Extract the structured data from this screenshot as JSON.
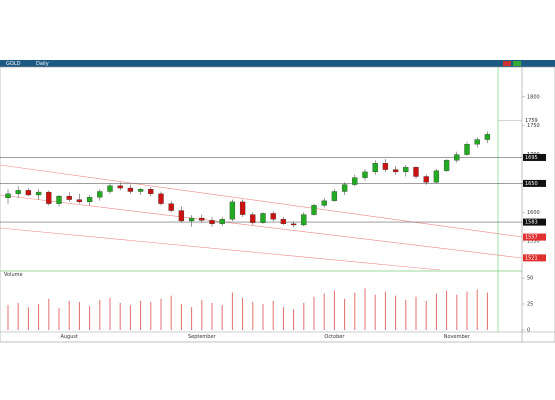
{
  "header": {
    "symbol": "GOLD",
    "timeframe": "Daily"
  },
  "chart_data": {
    "type": "candlestick",
    "categories": [
      null,
      null,
      null,
      null,
      null,
      null,
      "August",
      null,
      null,
      null,
      null,
      null,
      null,
      null,
      null,
      null,
      null,
      null,
      null,
      "September",
      null,
      null,
      null,
      null,
      null,
      null,
      null,
      null,
      null,
      null,
      null,
      null,
      "October",
      null,
      null,
      null,
      null,
      null,
      null,
      null,
      null,
      null,
      null,
      null,
      "November",
      null,
      null,
      null
    ],
    "open": [
      1625,
      1632,
      1638,
      1630,
      1635,
      1615,
      1628,
      1622,
      1618,
      1626,
      1636,
      1646,
      1642,
      1636,
      1640,
      1632,
      1615,
      1603,
      1585,
      1590,
      1586,
      1580,
      1588,
      1618,
      1596,
      1582,
      1598,
      1588,
      1580,
      1578,
      1596,
      1612,
      1620,
      1636,
      1648,
      1660,
      1670,
      1685,
      1674,
      1670,
      1678,
      1662,
      1652,
      1672,
      1690,
      1700,
      1718,
      1726
    ],
    "high": [
      1640,
      1645,
      1642,
      1640,
      1638,
      1630,
      1635,
      1632,
      1630,
      1640,
      1650,
      1652,
      1648,
      1642,
      1644,
      1636,
      1620,
      1610,
      1595,
      1596,
      1592,
      1592,
      1622,
      1622,
      1600,
      1600,
      1602,
      1592,
      1584,
      1600,
      1615,
      1625,
      1640,
      1652,
      1665,
      1675,
      1690,
      1692,
      1680,
      1682,
      1680,
      1666,
      1675,
      1692,
      1705,
      1722,
      1730,
      1740
    ],
    "low": [
      1615,
      1625,
      1628,
      1622,
      1612,
      1610,
      1618,
      1615,
      1612,
      1620,
      1632,
      1638,
      1632,
      1630,
      1628,
      1612,
      1600,
      1582,
      1575,
      1582,
      1575,
      1576,
      1585,
      1592,
      1578,
      1580,
      1584,
      1578,
      1574,
      1576,
      1594,
      1608,
      1618,
      1630,
      1645,
      1655,
      1665,
      1670,
      1665,
      1662,
      1658,
      1648,
      1650,
      1670,
      1686,
      1698,
      1712,
      1720
    ],
    "close": [
      1632,
      1638,
      1630,
      1635,
      1615,
      1628,
      1622,
      1618,
      1626,
      1636,
      1646,
      1642,
      1636,
      1640,
      1632,
      1615,
      1603,
      1585,
      1590,
      1586,
      1580,
      1588,
      1618,
      1596,
      1582,
      1598,
      1588,
      1580,
      1578,
      1596,
      1612,
      1620,
      1636,
      1648,
      1660,
      1670,
      1685,
      1674,
      1670,
      1678,
      1662,
      1652,
      1672,
      1690,
      1700,
      1718,
      1726,
      1735
    ],
    "up_color": "#22aa22",
    "down_color": "#cc1111",
    "ylim": [
      1500,
      1850
    ],
    "yticks": [
      1550,
      1600,
      1650,
      1700,
      1750,
      1800
    ],
    "levels": [
      1695,
      1650,
      1583
    ],
    "trend_labels": [
      1557,
      1521
    ],
    "cursor_price": 1759,
    "volume_title": "Volume",
    "volume": [
      24,
      26,
      22,
      25,
      30,
      21,
      28,
      27,
      23,
      29,
      31,
      26,
      24,
      28,
      27,
      30,
      33,
      25,
      22,
      29,
      26,
      24,
      36,
      31,
      27,
      25,
      28,
      22,
      20,
      26,
      32,
      35,
      38,
      30,
      36,
      40,
      34,
      37,
      33,
      29,
      32,
      28,
      35,
      38,
      34,
      37,
      39,
      36
    ],
    "volume_color": "#e07070",
    "vlim": [
      0,
      50
    ],
    "vticks": [
      0,
      25,
      50
    ]
  }
}
